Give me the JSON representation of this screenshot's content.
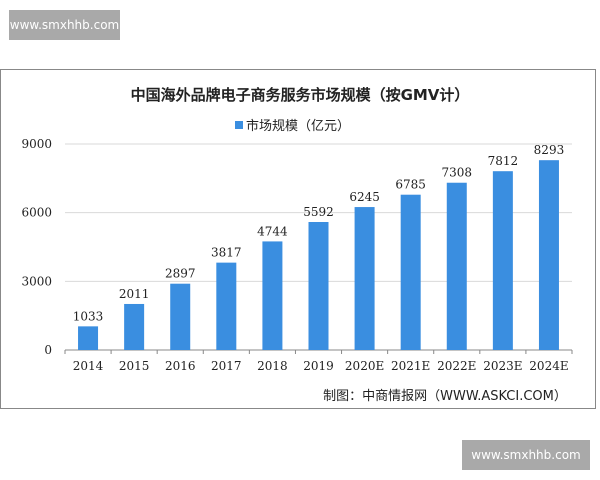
{
  "watermark_top": "www.smxhhb.com",
  "watermark_bottom": "www.smxhhb.com",
  "chart_data": {
    "type": "bar",
    "title": "中国海外品牌电子商务服务市场规模（按GMV计）",
    "categories": [
      "2014",
      "2015",
      "2016",
      "2017",
      "2018",
      "2019",
      "2020E",
      "2021E",
      "2022E",
      "2023E",
      "2024E"
    ],
    "series": [
      {
        "name": "市场规模（亿元）",
        "values": [
          1033,
          2011,
          2897,
          3817,
          4744,
          5592,
          6245,
          6785,
          7308,
          7812,
          8293
        ],
        "color": "#3a8ee0"
      }
    ],
    "yticks": [
      0,
      3000,
      6000,
      9000
    ],
    "ylim": [
      0,
      9000
    ],
    "legend_position": "top",
    "grid": true,
    "source": "制图：中商情报网（WWW.ASKCI.COM）"
  }
}
